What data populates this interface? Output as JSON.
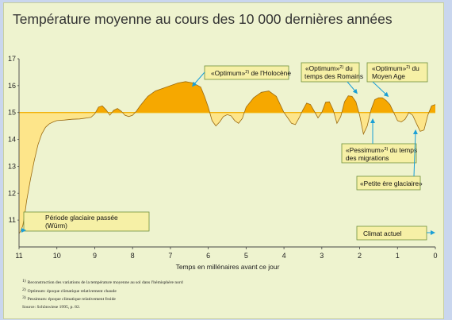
{
  "chart_data": {
    "type": "area",
    "title": "Température moyenne au cours des 10 000 dernières années",
    "xlabel": "Temps en millénaires avant ce jour",
    "ylabel": "",
    "baseline": 15,
    "xlim": [
      11,
      0
    ],
    "ylim": [
      10,
      17
    ],
    "x_ticks": [
      11,
      10,
      9,
      8,
      7,
      6,
      5,
      4,
      3,
      2,
      1,
      0
    ],
    "y_ticks": [
      11,
      12,
      13,
      14,
      15,
      16,
      17
    ],
    "series": [
      {
        "x": [
          11,
          10.95,
          10.9,
          10.85,
          10.8,
          10.7,
          10.6,
          10.5,
          10.4,
          10.3,
          10.2,
          10.1,
          10.0,
          9.8,
          9.6,
          9.4,
          9.3,
          9.2,
          9.1,
          9.0,
          8.9,
          8.8,
          8.7,
          8.6,
          8.5,
          8.4,
          8.3,
          8.2,
          8.1,
          8.0,
          7.9,
          7.8,
          7.6,
          7.4,
          7.2,
          7.0,
          6.8,
          6.6,
          6.4,
          6.2,
          6.1,
          6.0,
          5.9,
          5.8,
          5.7,
          5.6,
          5.5,
          5.4,
          5.3,
          5.2,
          5.1,
          5.0,
          4.8,
          4.6,
          4.4,
          4.2,
          4.1,
          4.0,
          3.9,
          3.8,
          3.7,
          3.6,
          3.5,
          3.4,
          3.3,
          3.2,
          3.1,
          3.0,
          2.9,
          2.8,
          2.7,
          2.6,
          2.5,
          2.4,
          2.3,
          2.2,
          2.1,
          2.0,
          1.9,
          1.8,
          1.7,
          1.6,
          1.5,
          1.4,
          1.3,
          1.2,
          1.1,
          1.0,
          0.9,
          0.8,
          0.7,
          0.6,
          0.5,
          0.4,
          0.3,
          0.2,
          0.1,
          0
        ],
        "y": [
          10.5,
          10.6,
          10.8,
          11.2,
          11.7,
          12.5,
          13.2,
          13.8,
          14.2,
          14.45,
          14.58,
          14.65,
          14.7,
          14.72,
          14.75,
          14.76,
          14.78,
          14.8,
          14.82,
          14.95,
          15.2,
          15.25,
          15.1,
          14.9,
          15.08,
          15.15,
          15.05,
          14.9,
          14.85,
          14.9,
          15.05,
          15.25,
          15.6,
          15.8,
          15.9,
          16.0,
          16.1,
          16.15,
          16.1,
          15.95,
          15.6,
          15.2,
          14.7,
          14.5,
          14.65,
          14.85,
          14.92,
          14.88,
          14.7,
          14.6,
          14.78,
          15.2,
          15.55,
          15.75,
          15.8,
          15.6,
          15.3,
          15.0,
          14.8,
          14.6,
          14.55,
          14.8,
          15.1,
          15.35,
          15.3,
          15.05,
          14.8,
          15.0,
          15.38,
          15.4,
          15.1,
          14.6,
          14.85,
          15.4,
          15.62,
          15.6,
          15.4,
          14.9,
          14.2,
          14.5,
          15.1,
          15.48,
          15.55,
          15.55,
          15.45,
          15.3,
          15.0,
          14.7,
          14.65,
          14.75,
          15.0,
          14.9,
          14.6,
          14.3,
          14.35,
          14.9,
          15.25,
          15.3
        ]
      }
    ],
    "annotations": {
      "glacial": [
        "Période glaciaire passée",
        "(Würm)"
      ],
      "holocene": {
        "pre": "«Optimum»",
        "sup": "2)",
        "post": " de l'Holocène"
      },
      "romans": {
        "pre": "«Optimum»",
        "sup": "2)",
        "post": " du",
        "line2": "temps des Romains"
      },
      "moyen_age": {
        "pre": "«Optimum»",
        "sup": "2)",
        "post": " du",
        "line2": "Moyen Age"
      },
      "pessimum": {
        "pre": "«Pessimum»",
        "sup": "3)",
        "post": " du temps",
        "line2": "des migrations"
      },
      "petite_ere": "«Petite ère glaciaire»",
      "climat": "Climat actuel"
    },
    "footnotes": [
      {
        "sup": "1)",
        "text": "Reconstruction des variations de la température moyenne au sol dans l'hémisphère nord"
      },
      {
        "sup": "2)",
        "text": "Optimum: époque climatique relativement chaude"
      },
      {
        "sup": "3)",
        "text": "Pessimum: époque climatique relativement froide"
      },
      {
        "sup": "",
        "text": "Source: Schönwiese 1995, p. 82."
      }
    ],
    "colors": {
      "background": "#eef3cf",
      "outer": "#c9d6ee",
      "warm": "#f6a800",
      "cold": "#fde58a",
      "curve": "#9a6a10",
      "baseline": "#f2b10a",
      "arrow": "#1a9fd6",
      "box": "#f6f0a6"
    }
  }
}
